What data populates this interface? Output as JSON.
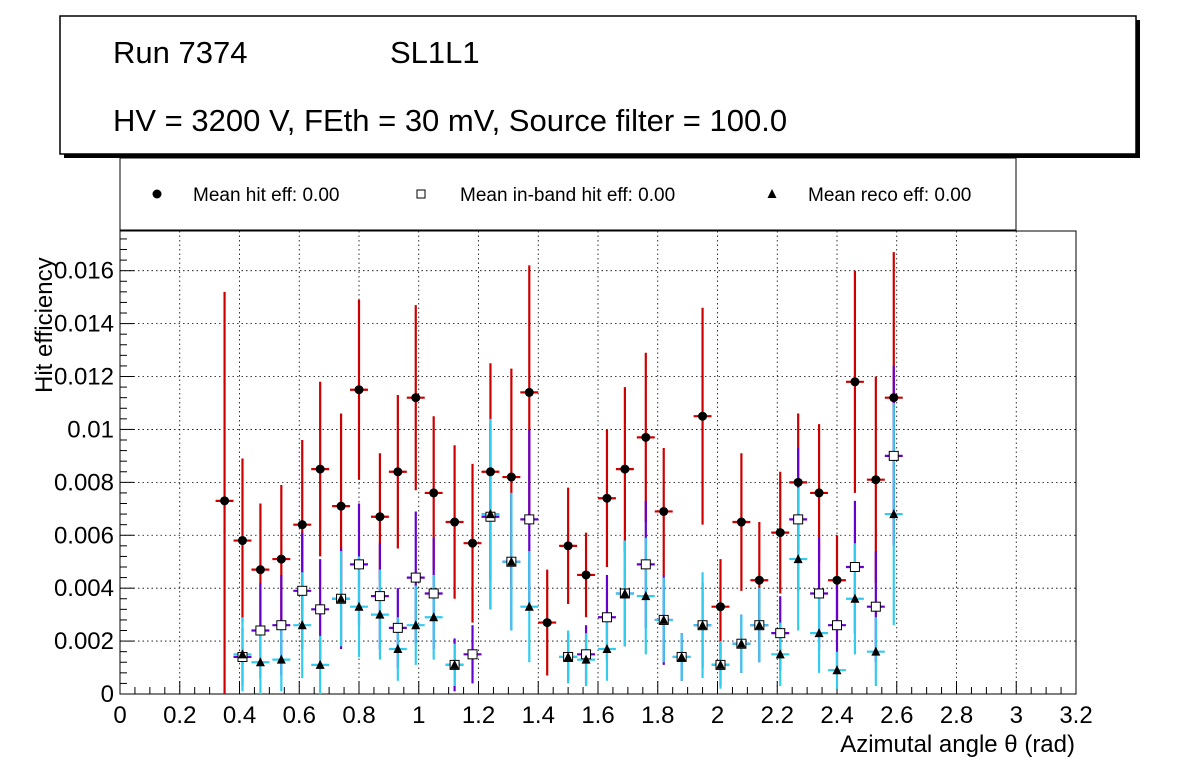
{
  "header": {
    "run_label": "Run 7374",
    "layer_label": "SL1L1",
    "conditions": "HV = 3200 V, FEth = 30 mV, Source filter = 100.0"
  },
  "legend": {
    "hit": "Mean hit  eff: 0.00",
    "inband": "Mean in-band hit eff: 0.00",
    "reco": "Mean reco eff: 0.00"
  },
  "colors": {
    "hit_err": "#cc0000",
    "inband_err": "#6600cc",
    "reco_err": "#33ccee",
    "grid": "#000000"
  },
  "chart_data": {
    "type": "scatter",
    "title": "",
    "xlabel": "Azimutal angle θ (rad)",
    "ylabel": "Hit efficiency",
    "xlim": [
      0,
      3.2
    ],
    "ylim": [
      0,
      0.0175
    ],
    "x_ticks": [
      "0",
      "0.2",
      "0.4",
      "0.6",
      "0.8",
      "1",
      "1.2",
      "1.4",
      "1.6",
      "1.8",
      "2",
      "2.2",
      "2.4",
      "2.6",
      "2.8",
      "3",
      "3.2"
    ],
    "y_ticks": [
      "0",
      "0.002",
      "0.004",
      "0.006",
      "0.008",
      "0.01",
      "0.012",
      "0.014",
      "0.016"
    ],
    "x_error": 0.03,
    "series": [
      {
        "name": "Mean hit  eff: 0.00",
        "marker": "circle",
        "points": [
          {
            "x": 0.35,
            "y": 0.0073,
            "err": 0.0079
          },
          {
            "x": 0.41,
            "y": 0.0058,
            "err": 0.0031
          },
          {
            "x": 0.47,
            "y": 0.0047,
            "err": 0.0025
          },
          {
            "x": 0.54,
            "y": 0.0051,
            "err": 0.0028
          },
          {
            "x": 0.61,
            "y": 0.0064,
            "err": 0.0032
          },
          {
            "x": 0.67,
            "y": 0.0085,
            "err": 0.0033
          },
          {
            "x": 0.74,
            "y": 0.0071,
            "err": 0.0035
          },
          {
            "x": 0.8,
            "y": 0.0115,
            "err": 0.0034
          },
          {
            "x": 0.87,
            "y": 0.0067,
            "err": 0.0024
          },
          {
            "x": 0.93,
            "y": 0.0084,
            "err": 0.0029
          },
          {
            "x": 0.99,
            "y": 0.0112,
            "err": 0.0035
          },
          {
            "x": 1.05,
            "y": 0.0076,
            "err": 0.0029
          },
          {
            "x": 1.12,
            "y": 0.0065,
            "err": 0.0029
          },
          {
            "x": 1.18,
            "y": 0.0057,
            "err": 0.003
          },
          {
            "x": 1.24,
            "y": 0.0084,
            "err": 0.0041
          },
          {
            "x": 1.31,
            "y": 0.0082,
            "err": 0.0041
          },
          {
            "x": 1.37,
            "y": 0.0114,
            "err": 0.0048
          },
          {
            "x": 1.43,
            "y": 0.0027,
            "err": 0.002
          },
          {
            "x": 1.5,
            "y": 0.0056,
            "err": 0.0022
          },
          {
            "x": 1.56,
            "y": 0.0045,
            "err": 0.0016
          },
          {
            "x": 1.63,
            "y": 0.0074,
            "err": 0.0026
          },
          {
            "x": 1.69,
            "y": 0.0085,
            "err": 0.0031
          },
          {
            "x": 1.76,
            "y": 0.0097,
            "err": 0.0032
          },
          {
            "x": 1.82,
            "y": 0.0069,
            "err": 0.0024
          },
          {
            "x": 1.95,
            "y": 0.0105,
            "err": 0.0041
          },
          {
            "x": 2.01,
            "y": 0.0033,
            "err": 0.0018
          },
          {
            "x": 2.08,
            "y": 0.0065,
            "err": 0.0026
          },
          {
            "x": 2.14,
            "y": 0.0043,
            "err": 0.0022
          },
          {
            "x": 2.21,
            "y": 0.0061,
            "err": 0.0023
          },
          {
            "x": 2.27,
            "y": 0.008,
            "err": 0.0026
          },
          {
            "x": 2.34,
            "y": 0.0076,
            "err": 0.0026
          },
          {
            "x": 2.4,
            "y": 0.0043,
            "err": 0.0017
          },
          {
            "x": 2.46,
            "y": 0.0118,
            "err": 0.0042
          },
          {
            "x": 2.53,
            "y": 0.0081,
            "err": 0.0039
          },
          {
            "x": 2.59,
            "y": 0.0112,
            "err": 0.0055
          }
        ]
      },
      {
        "name": "Mean in-band hit eff: 0.00",
        "marker": "square",
        "points": [
          {
            "x": 0.41,
            "y": 0.0014,
            "err": 0.0011
          },
          {
            "x": 0.47,
            "y": 0.0024,
            "err": 0.0018
          },
          {
            "x": 0.54,
            "y": 0.0026,
            "err": 0.0019
          },
          {
            "x": 0.61,
            "y": 0.0039,
            "err": 0.0022
          },
          {
            "x": 0.67,
            "y": 0.0032,
            "err": 0.0019
          },
          {
            "x": 0.74,
            "y": 0.0036,
            "err": 0.0019
          },
          {
            "x": 0.8,
            "y": 0.0049,
            "err": 0.0023
          },
          {
            "x": 0.87,
            "y": 0.0037,
            "err": 0.002
          },
          {
            "x": 0.93,
            "y": 0.0025,
            "err": 0.0015
          },
          {
            "x": 0.99,
            "y": 0.0044,
            "err": 0.0025
          },
          {
            "x": 1.05,
            "y": 0.0038,
            "err": 0.0021
          },
          {
            "x": 1.12,
            "y": 0.0011,
            "err": 0.001
          },
          {
            "x": 1.18,
            "y": 0.0015,
            "err": 0.0011
          },
          {
            "x": 1.24,
            "y": 0.0067,
            "err": 0.0035
          },
          {
            "x": 1.31,
            "y": 0.005,
            "err": 0.0026
          },
          {
            "x": 1.37,
            "y": 0.0066,
            "err": 0.0034
          },
          {
            "x": 1.5,
            "y": 0.0014,
            "err": 0.0009
          },
          {
            "x": 1.56,
            "y": 0.0015,
            "err": 0.0011
          },
          {
            "x": 1.63,
            "y": 0.0029,
            "err": 0.0016
          },
          {
            "x": 1.69,
            "y": 0.0038,
            "err": 0.002
          },
          {
            "x": 1.76,
            "y": 0.0049,
            "err": 0.0024
          },
          {
            "x": 1.82,
            "y": 0.0028,
            "err": 0.0017
          },
          {
            "x": 1.88,
            "y": 0.0014,
            "err": 0.0009
          },
          {
            "x": 1.95,
            "y": 0.0026,
            "err": 0.0016
          },
          {
            "x": 2.01,
            "y": 0.0011,
            "err": 0.0008
          },
          {
            "x": 2.08,
            "y": 0.0019,
            "err": 0.0011
          },
          {
            "x": 2.14,
            "y": 0.0026,
            "err": 0.0014
          },
          {
            "x": 2.21,
            "y": 0.0023,
            "err": 0.0014
          },
          {
            "x": 2.27,
            "y": 0.0066,
            "err": 0.0027
          },
          {
            "x": 2.34,
            "y": 0.0038,
            "err": 0.0021
          },
          {
            "x": 2.4,
            "y": 0.0026,
            "err": 0.0016
          },
          {
            "x": 2.46,
            "y": 0.0048,
            "err": 0.0025
          },
          {
            "x": 2.53,
            "y": 0.0033,
            "err": 0.0021
          },
          {
            "x": 2.59,
            "y": 0.009,
            "err": 0.0034
          }
        ]
      },
      {
        "name": "Mean reco eff: 0.00",
        "marker": "triangle",
        "points": [
          {
            "x": 0.41,
            "y": 0.0015,
            "err": 0.0014
          },
          {
            "x": 0.47,
            "y": 0.0012,
            "err": 0.0012
          },
          {
            "x": 0.54,
            "y": 0.0013,
            "err": 0.0012
          },
          {
            "x": 0.61,
            "y": 0.0026,
            "err": 0.002
          },
          {
            "x": 0.67,
            "y": 0.0011,
            "err": 0.0011
          },
          {
            "x": 0.74,
            "y": 0.0036,
            "err": 0.0018
          },
          {
            "x": 0.8,
            "y": 0.0033,
            "err": 0.0019
          },
          {
            "x": 0.87,
            "y": 0.003,
            "err": 0.0017
          },
          {
            "x": 0.93,
            "y": 0.0017,
            "err": 0.0012
          },
          {
            "x": 0.99,
            "y": 0.0026,
            "err": 0.0015
          },
          {
            "x": 1.05,
            "y": 0.0029,
            "err": 0.0016
          },
          {
            "x": 1.12,
            "y": 0.0011,
            "err": 0.0008
          },
          {
            "x": 1.24,
            "y": 0.0068,
            "err": 0.0036
          },
          {
            "x": 1.31,
            "y": 0.005,
            "err": 0.0026
          },
          {
            "x": 1.37,
            "y": 0.0033,
            "err": 0.0021
          },
          {
            "x": 1.5,
            "y": 0.0014,
            "err": 0.001
          },
          {
            "x": 1.56,
            "y": 0.0013,
            "err": 0.001
          },
          {
            "x": 1.63,
            "y": 0.0017,
            "err": 0.0012
          },
          {
            "x": 1.69,
            "y": 0.0038,
            "err": 0.002
          },
          {
            "x": 1.76,
            "y": 0.0037,
            "err": 0.0022
          },
          {
            "x": 1.82,
            "y": 0.0028,
            "err": 0.0016
          },
          {
            "x": 1.88,
            "y": 0.0014,
            "err": 0.0009
          },
          {
            "x": 1.95,
            "y": 0.0026,
            "err": 0.002
          },
          {
            "x": 2.01,
            "y": 0.0011,
            "err": 0.0009
          },
          {
            "x": 2.08,
            "y": 0.0019,
            "err": 0.0011
          },
          {
            "x": 2.14,
            "y": 0.0026,
            "err": 0.0014
          },
          {
            "x": 2.21,
            "y": 0.0015,
            "err": 0.0012
          },
          {
            "x": 2.27,
            "y": 0.0051,
            "err": 0.0027
          },
          {
            "x": 2.34,
            "y": 0.0023,
            "err": 0.0015
          },
          {
            "x": 2.4,
            "y": 0.0009,
            "err": 0.0007
          },
          {
            "x": 2.46,
            "y": 0.0036,
            "err": 0.0021
          },
          {
            "x": 2.53,
            "y": 0.0016,
            "err": 0.0013
          },
          {
            "x": 2.59,
            "y": 0.0068,
            "err": 0.0042
          }
        ]
      }
    ]
  }
}
